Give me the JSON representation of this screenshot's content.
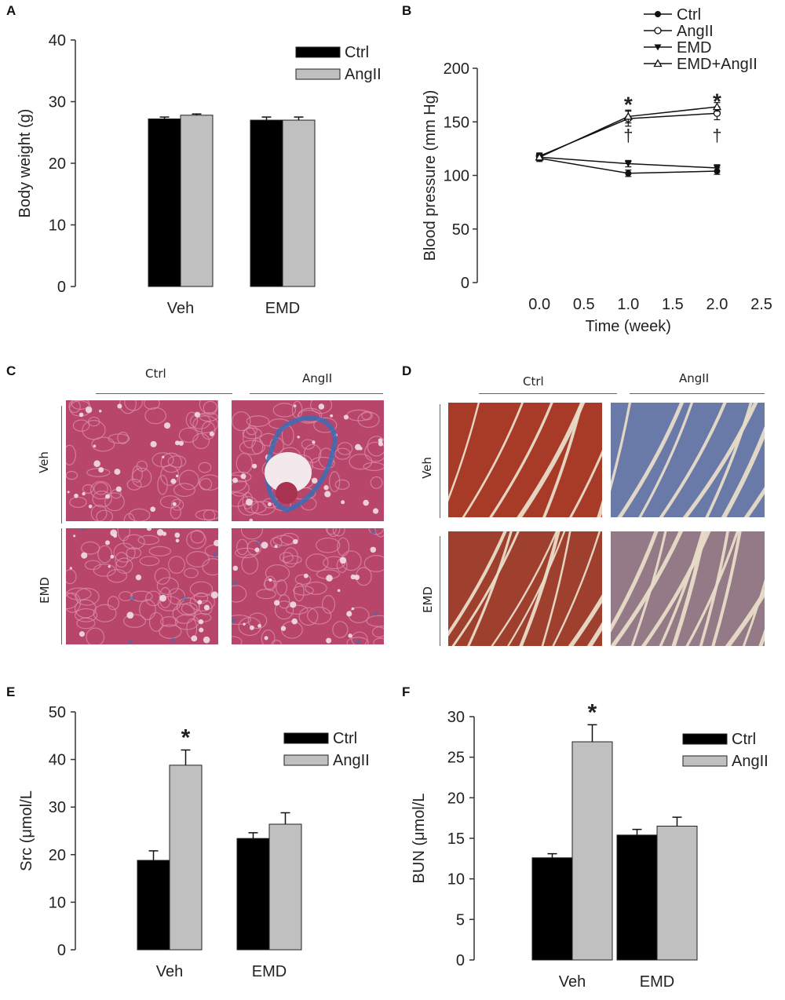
{
  "panels": {
    "a": {
      "letter": "A"
    },
    "b": {
      "letter": "B"
    },
    "c": {
      "letter": "C"
    },
    "d": {
      "letter": "D"
    },
    "e": {
      "letter": "E"
    },
    "f": {
      "letter": "F"
    }
  },
  "histology": {
    "c": {
      "col_labels": [
        "Ctrl",
        "AngII"
      ],
      "row_labels": [
        "Veh",
        "EMD"
      ],
      "stain": "kidney"
    },
    "d": {
      "col_labels": [
        "Ctrl",
        "AngII"
      ],
      "row_labels": [
        "Veh",
        "EMD"
      ],
      "stain": "heart"
    }
  },
  "colors": {
    "ctrl_bar": "#000000",
    "angii_bar": "#c0c0c0",
    "kidney_tissue": "#b8456a",
    "kidney_fibrosis": "#3a6fb5",
    "heart_muscle": "#a83a28",
    "heart_fibrosis": "#6a7aa8",
    "heart_gap": "#e8dcc8"
  },
  "chart_data": [
    {
      "id": "A",
      "type": "bar",
      "categories": [
        "Veh",
        "EMD"
      ],
      "series": [
        {
          "name": "Ctrl",
          "values": [
            27.2,
            27.0
          ],
          "errors": [
            0.3,
            0.5
          ]
        },
        {
          "name": "AngII",
          "values": [
            27.8,
            27.0
          ],
          "errors": [
            0.2,
            0.5
          ]
        }
      ],
      "ylabel": "Body weight (g)",
      "ylim": [
        0,
        40
      ],
      "yticks": [
        0,
        10,
        20,
        30,
        40
      ],
      "legend": "top-right",
      "annotations": []
    },
    {
      "id": "B",
      "type": "line",
      "x": [
        0.0,
        1.0,
        2.0
      ],
      "series": [
        {
          "name": "Ctrl",
          "marker": "filled-circle",
          "values": [
            116,
            102,
            104
          ],
          "errors": [
            3,
            3,
            3
          ]
        },
        {
          "name": "AngII",
          "marker": "open-circle",
          "values": [
            118,
            153,
            158
          ],
          "errors": [
            3,
            7,
            6
          ]
        },
        {
          "name": "EMD",
          "marker": "filled-triangle",
          "values": [
            117,
            111,
            107
          ],
          "errors": [
            3,
            3,
            3
          ]
        },
        {
          "name": "EMD+AngII",
          "marker": "open-triangle",
          "values": [
            117,
            155,
            164
          ],
          "errors": [
            3,
            6,
            4
          ]
        }
      ],
      "xlabel": "Time (week)",
      "ylabel": "Blood pressure (mm Hg)",
      "xlim": [
        -0.7,
        2.5
      ],
      "ylim": [
        0,
        200
      ],
      "xticks": [
        "0.0",
        "0.5",
        "1.0",
        "1.5",
        "2.0",
        "2.5"
      ],
      "yticks": [
        0,
        50,
        100,
        150,
        200
      ],
      "legend": "top-right",
      "annotations": [
        {
          "text": "*",
          "x": 1.0,
          "y": 168
        },
        {
          "text": "*",
          "x": 2.0,
          "y": 171
        },
        {
          "text": "†",
          "x": 1.0,
          "y": 132
        },
        {
          "text": "†",
          "x": 2.0,
          "y": 132
        }
      ]
    },
    {
      "id": "E",
      "type": "bar",
      "categories": [
        "Veh",
        "EMD"
      ],
      "series": [
        {
          "name": "Ctrl",
          "values": [
            18.8,
            23.4
          ],
          "errors": [
            2.0,
            1.2
          ]
        },
        {
          "name": "AngII",
          "values": [
            38.8,
            26.4
          ],
          "errors": [
            3.2,
            2.4
          ]
        }
      ],
      "ylabel": "Src (μmol/L",
      "ylim": [
        0,
        50
      ],
      "yticks": [
        0,
        10,
        20,
        30,
        40,
        50
      ],
      "legend": "top-right",
      "annotations": [
        {
          "text": "*",
          "category": 0,
          "series": 1
        }
      ]
    },
    {
      "id": "F",
      "type": "bar",
      "categories": [
        "Veh",
        "EMD"
      ],
      "series": [
        {
          "name": "Ctrl",
          "values": [
            12.6,
            15.4
          ],
          "errors": [
            0.5,
            0.7
          ]
        },
        {
          "name": "AngII",
          "values": [
            26.9,
            16.5
          ],
          "errors": [
            2.1,
            1.1
          ]
        }
      ],
      "ylabel": "BUN (μmol/L",
      "ylim": [
        0,
        30
      ],
      "yticks": [
        0,
        5,
        10,
        15,
        20,
        25,
        30
      ],
      "legend": "top-right",
      "annotations": [
        {
          "text": "*",
          "category": 0,
          "series": 1
        }
      ]
    }
  ]
}
